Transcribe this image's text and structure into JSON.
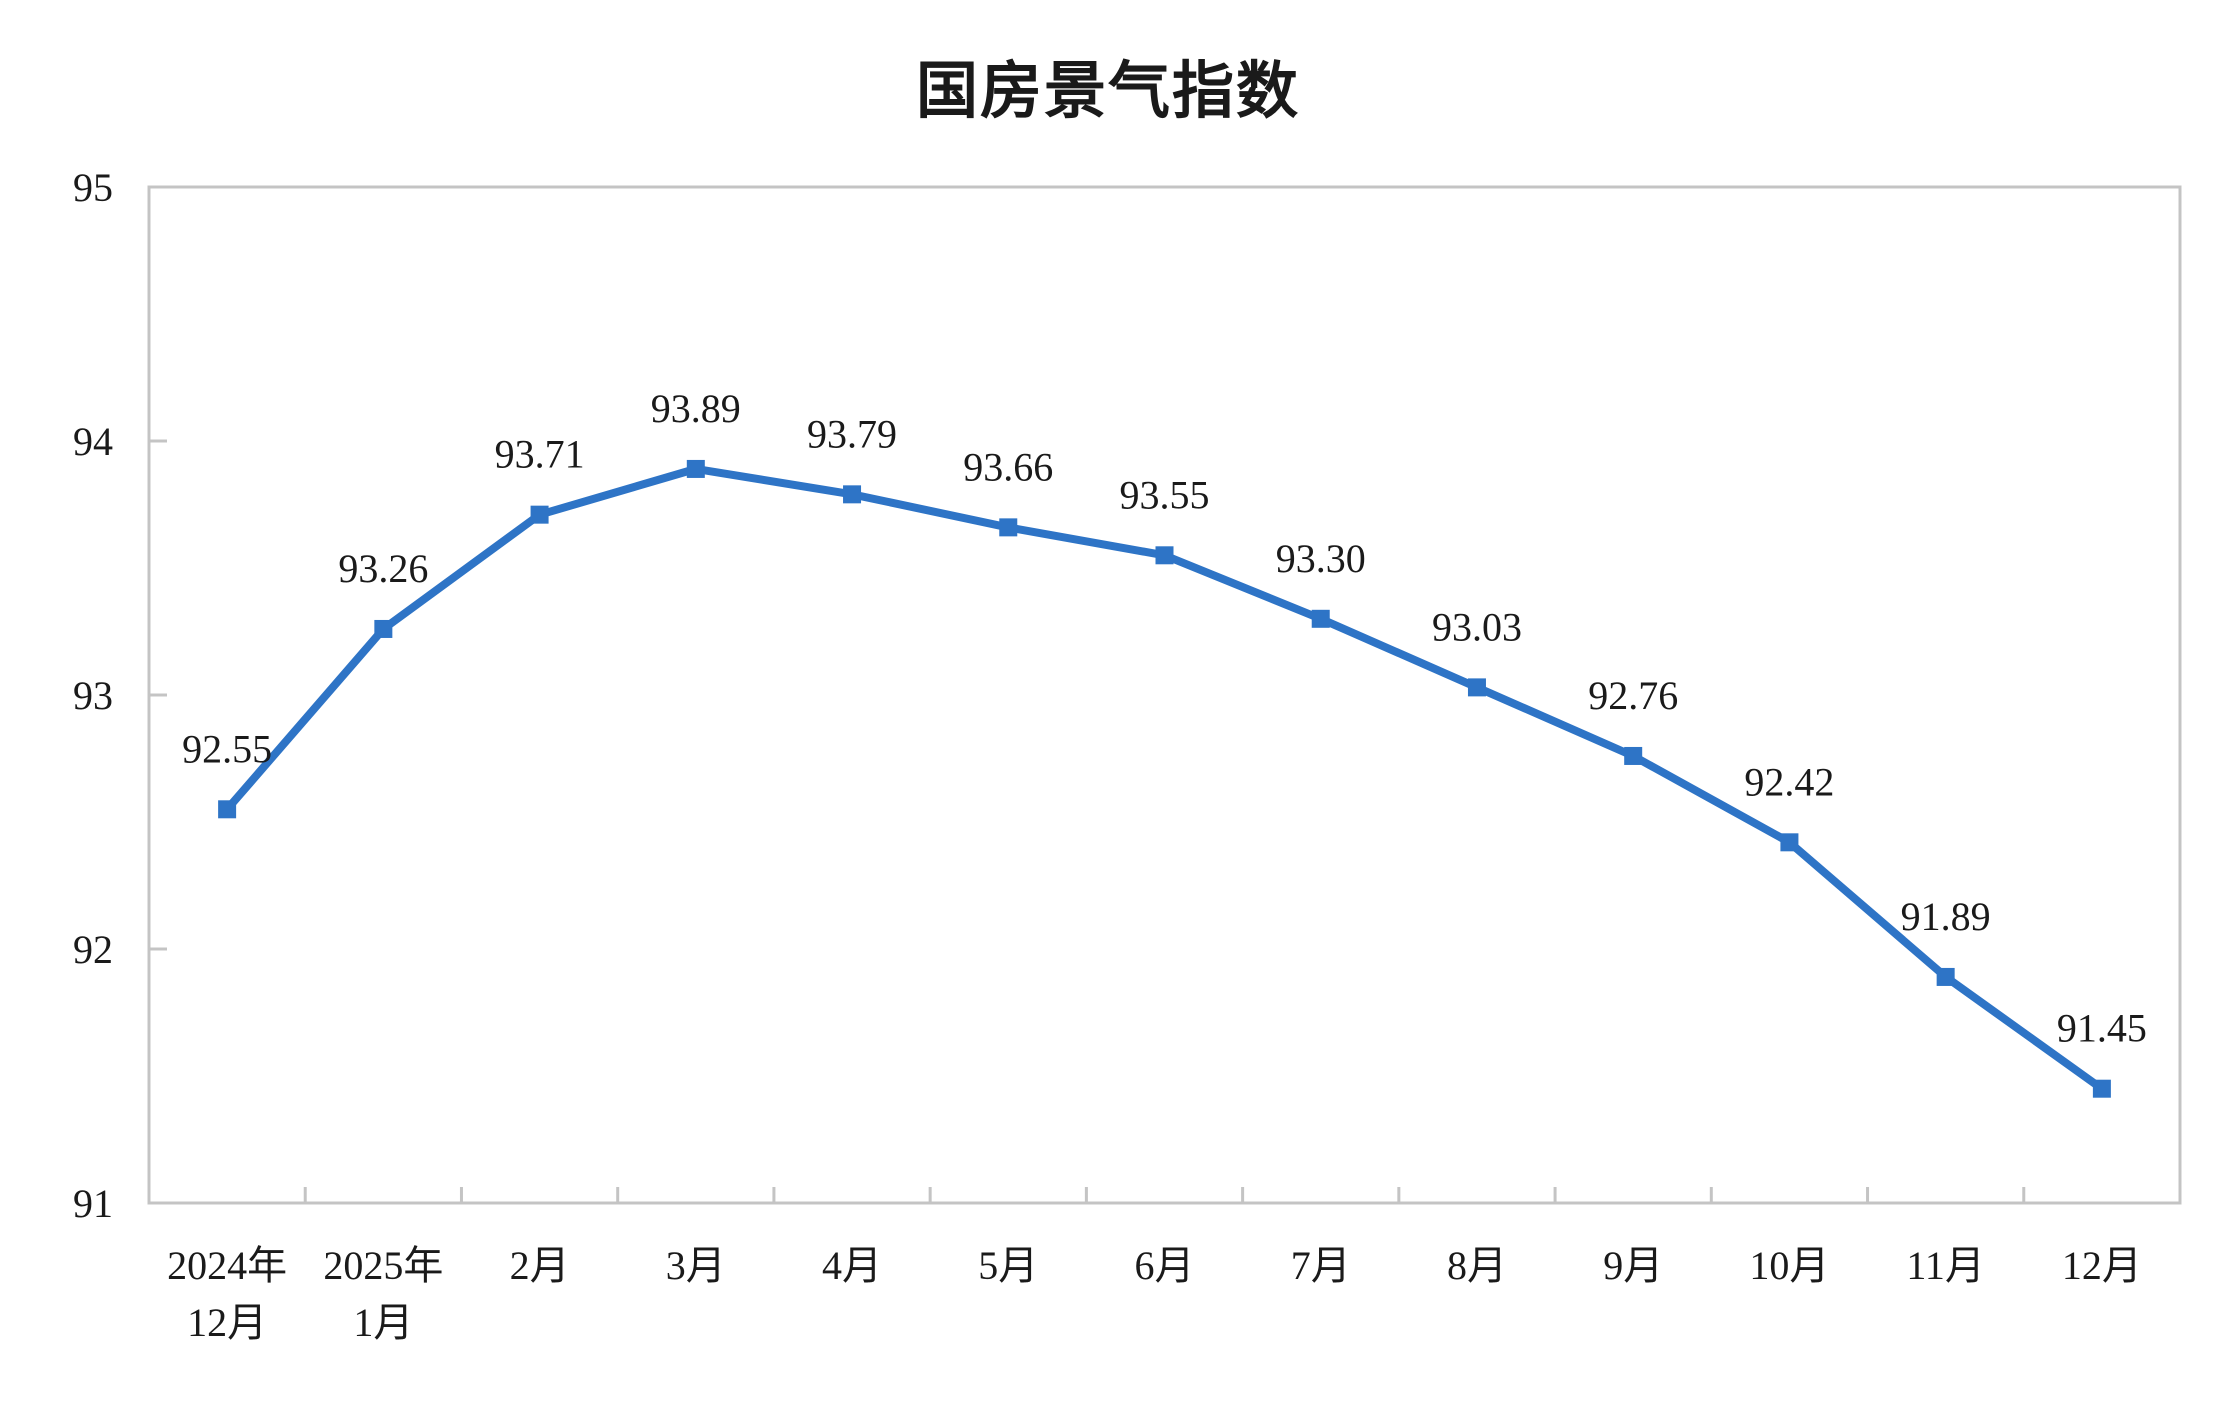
{
  "title": "国房景气指数",
  "colors": {
    "line": "#2e74c6",
    "frame": "#c4c4c4",
    "text": "#1a1a1a",
    "background": "#ffffff"
  },
  "chart_data": {
    "type": "line",
    "title": "国房景气指数",
    "xlabel": "",
    "ylabel": "",
    "ylim": [
      91,
      95
    ],
    "yticks": [
      91,
      92,
      93,
      94,
      95
    ],
    "grid": false,
    "legend": null,
    "categories": [
      [
        "2024年",
        "12月"
      ],
      [
        "2025年",
        "1月"
      ],
      [
        "2月"
      ],
      [
        "3月"
      ],
      [
        "4月"
      ],
      [
        "5月"
      ],
      [
        "6月"
      ],
      [
        "7月"
      ],
      [
        "8月"
      ],
      [
        "9月"
      ],
      [
        "10月"
      ],
      [
        "11月"
      ],
      [
        "12月"
      ]
    ],
    "series": [
      {
        "name": "国房景气指数",
        "values": [
          92.55,
          93.26,
          93.71,
          93.89,
          93.79,
          93.66,
          93.55,
          93.3,
          93.03,
          92.76,
          92.42,
          91.89,
          91.45
        ],
        "labels": [
          "92.55",
          "93.26",
          "93.71",
          "93.89",
          "93.79",
          "93.66",
          "93.55",
          "93.30",
          "93.03",
          "92.76",
          "92.42",
          "91.89",
          "91.45"
        ],
        "marker": "square"
      }
    ]
  }
}
